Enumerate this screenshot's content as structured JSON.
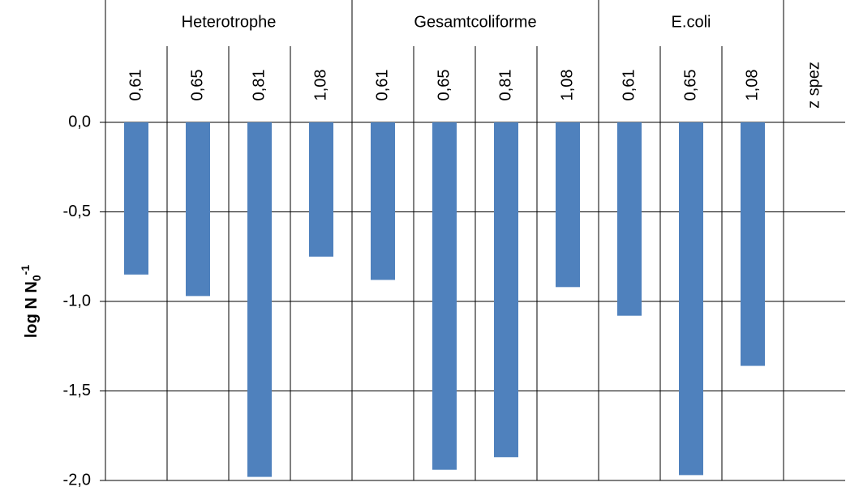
{
  "chart_data": {
    "type": "bar",
    "ylabel": {
      "text": "log N N",
      "sub": "0",
      "sup": "-1"
    },
    "ylim": [
      -2.0,
      0.0
    ],
    "yticks": [
      {
        "value": 0.0,
        "label": "0,0"
      },
      {
        "value": -0.5,
        "label": "-0,5"
      },
      {
        "value": -1.0,
        "label": "-1,0"
      },
      {
        "value": -1.5,
        "label": "-1,5"
      },
      {
        "value": -2.0,
        "label": "-2,0"
      }
    ],
    "grid": true,
    "color": "#4f81bd",
    "x_label_title": "z spez",
    "series": [
      {
        "name": "Heterotrophe",
        "categories": [
          "0,61",
          "0,65",
          "0,81",
          "1,08"
        ],
        "values": [
          -0.85,
          -0.97,
          -1.98,
          -0.75
        ]
      },
      {
        "name": "Gesamtcoliforme",
        "categories": [
          "0,61",
          "0,65",
          "0,81",
          "1,08"
        ],
        "values": [
          -0.88,
          -1.94,
          -1.87,
          -0.92
        ]
      },
      {
        "name": "E.coli",
        "categories": [
          "0,61",
          "0,65",
          "1,08"
        ],
        "values": [
          -1.08,
          -1.97,
          -1.36
        ]
      }
    ]
  }
}
